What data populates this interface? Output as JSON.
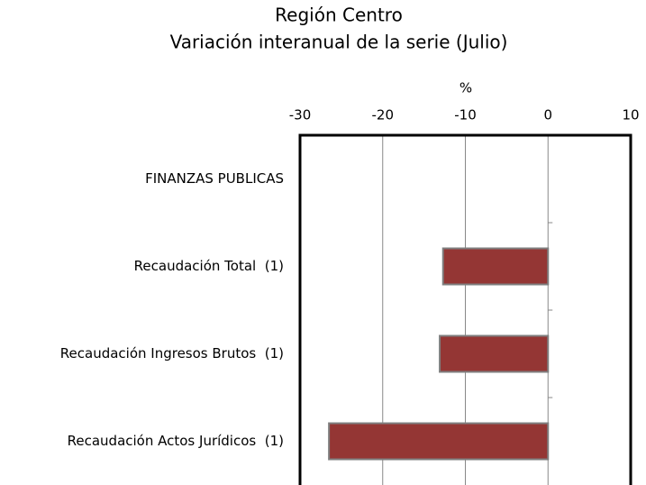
{
  "chart_data": {
    "type": "bar",
    "orientation": "horizontal",
    "title": "Región Centro",
    "subtitle": "Variación interanual de la serie (Julio)",
    "x_label": "%",
    "categories": [
      "FINANZAS PUBLICAS",
      "Recaudación Total  (1)",
      "Recaudación Ingresos Brutos  (1)",
      "Recaudación Actos Jurídicos  (1)"
    ],
    "values": [
      null,
      -12.7,
      -13.1,
      -26.5
    ],
    "color": "#943634",
    "xlim": [
      -30,
      10
    ],
    "xticks": [
      -30,
      -20,
      -10,
      0,
      10
    ],
    "grid": true
  }
}
